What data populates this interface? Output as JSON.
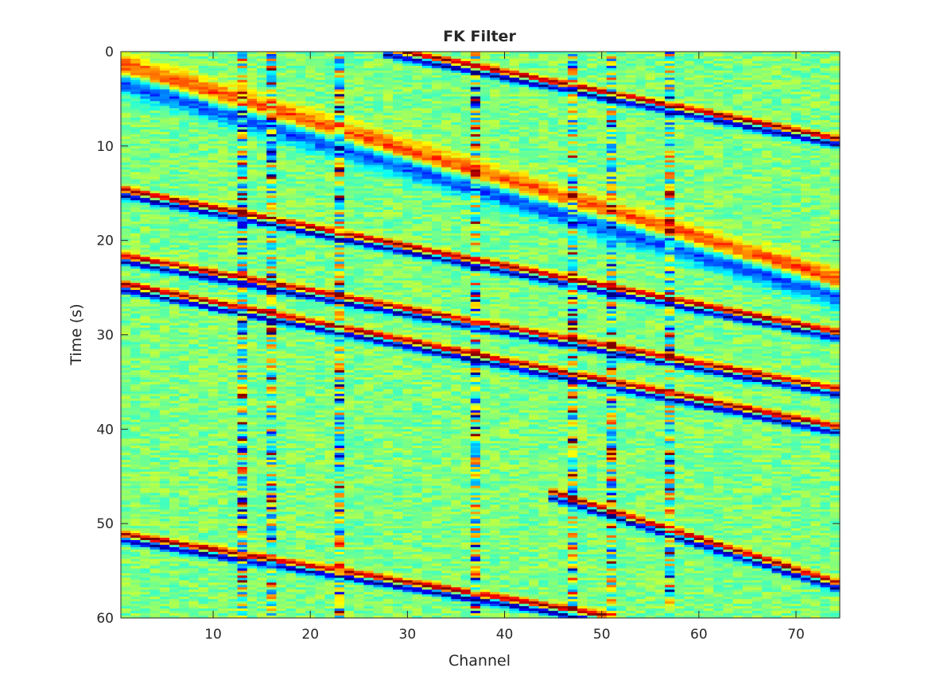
{
  "chart_data": {
    "type": "heatmap",
    "title": "FK Filter",
    "xlabel": "Channel",
    "ylabel": "Time (s)",
    "xlim": [
      0.5,
      74.5
    ],
    "ylim": [
      0,
      60
    ],
    "y_reversed": true,
    "xticks": [
      10,
      20,
      30,
      40,
      50,
      60,
      70
    ],
    "yticks": [
      0,
      10,
      20,
      30,
      40,
      50,
      60
    ],
    "colormap": "jet",
    "background_level": "light green (near zero amplitude)",
    "channels": 74,
    "grid": false,
    "legend": "none",
    "event_arrivals": [
      {
        "start_channel": 1,
        "start_time": 2.5,
        "end_channel": 74,
        "end_time": 25.0,
        "polarity": "strong, broad (blue-red pair)"
      },
      {
        "start_channel": 1,
        "start_time": 15.0,
        "end_channel": 74,
        "end_time": 30.0,
        "polarity": "blue leading, red trailing"
      },
      {
        "start_channel": 1,
        "start_time": 22.0,
        "end_channel": 74,
        "end_time": 36.0,
        "polarity": "red leading, blue trailing"
      },
      {
        "start_channel": 1,
        "start_time": 25.0,
        "end_channel": 74,
        "end_time": 40.0,
        "polarity": "red leading, blue trailing"
      },
      {
        "start_channel": 28,
        "start_time": 0.0,
        "end_channel": 74,
        "end_time": 9.5,
        "polarity": "blue leading, red trailing"
      },
      {
        "start_channel": 1,
        "start_time": 51.5,
        "end_channel": 50,
        "end_time": 60.0,
        "polarity": "blue leading, red trailing"
      },
      {
        "start_channel": 45,
        "start_time": 47.0,
        "end_channel": 74,
        "end_time": 56.5,
        "polarity": "blue leading, red trailing"
      }
    ],
    "noisy_channels": [
      13,
      16,
      23,
      37,
      47,
      51,
      57
    ]
  }
}
